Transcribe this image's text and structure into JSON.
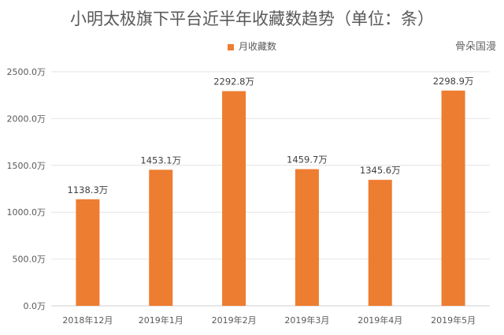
{
  "chart_data": {
    "type": "bar",
    "title": "小明太极旗下平台近半年收藏数趋势（单位：条）",
    "categories": [
      "2018年12月",
      "2019年1月",
      "2019年2月",
      "2019年3月",
      "2019年4月",
      "2019年5月"
    ],
    "series": [
      {
        "name": "月收藏数",
        "values": [
          1138.3,
          1453.1,
          2292.8,
          1459.7,
          1345.6,
          2298.9
        ]
      }
    ],
    "data_labels": [
      "1138.3万",
      "1453.1万",
      "2292.8万",
      "1459.7万",
      "1345.6万",
      "2298.9万"
    ],
    "y_ticks": [
      "0.0万",
      "500.0万",
      "1000.0万",
      "1500.0万",
      "2000.0万",
      "2500.0万"
    ],
    "ylim": [
      0,
      2500
    ],
    "grid": true,
    "legend": "top",
    "bar_color": "#ED7D31",
    "xlabel": "",
    "ylabel": ""
  },
  "watermark": "骨朵国漫"
}
